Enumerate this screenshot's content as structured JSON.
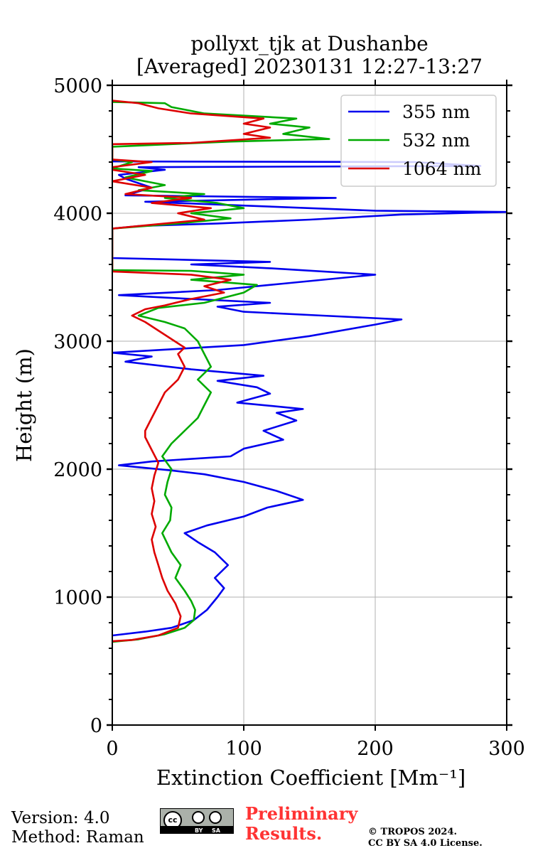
{
  "chart_data": {
    "type": "line",
    "title": [
      "pollyxt_tjk at Dushanbe",
      "[Averaged] 20230131 12:27-13:27"
    ],
    "xlabel": "Extinction Coefficient [Mm⁻¹]",
    "ylabel": "Height (m)",
    "xlim": [
      0,
      300
    ],
    "ylim": [
      0,
      5000
    ],
    "xticks": [
      0,
      100,
      200,
      300
    ],
    "yticks": [
      0,
      1000,
      2000,
      3000,
      4000,
      5000
    ],
    "xtick_labels": [
      "0",
      "100",
      "200",
      "300"
    ],
    "ytick_labels": [
      "0",
      "1000",
      "2000",
      "3000",
      "4000",
      "5000"
    ],
    "grid": true,
    "legend_position": "top-right",
    "series": [
      {
        "name": "355 nm",
        "color": "#0000ee",
        "points": [
          [
            0,
            700
          ],
          [
            25,
            730
          ],
          [
            45,
            760
          ],
          [
            62,
            820
          ],
          [
            72,
            900
          ],
          [
            80,
            1000
          ],
          [
            85,
            1070
          ],
          [
            78,
            1150
          ],
          [
            88,
            1250
          ],
          [
            78,
            1350
          ],
          [
            65,
            1430
          ],
          [
            55,
            1500
          ],
          [
            72,
            1560
          ],
          [
            100,
            1630
          ],
          [
            118,
            1700
          ],
          [
            145,
            1760
          ],
          [
            125,
            1830
          ],
          [
            100,
            1900
          ],
          [
            70,
            1960
          ],
          [
            45,
            1990
          ],
          [
            5,
            2030
          ],
          [
            30,
            2060
          ],
          [
            90,
            2100
          ],
          [
            100,
            2160
          ],
          [
            130,
            2230
          ],
          [
            115,
            2300
          ],
          [
            140,
            2380
          ],
          [
            125,
            2440
          ],
          [
            145,
            2470
          ],
          [
            95,
            2520
          ],
          [
            120,
            2590
          ],
          [
            110,
            2640
          ],
          [
            80,
            2690
          ],
          [
            115,
            2730
          ],
          [
            60,
            2780
          ],
          [
            10,
            2840
          ],
          [
            30,
            2880
          ],
          [
            0,
            2910
          ],
          [
            50,
            2940
          ],
          [
            100,
            2970
          ],
          [
            150,
            3040
          ],
          [
            200,
            3130
          ],
          [
            220,
            3170
          ],
          [
            160,
            3200
          ],
          [
            100,
            3230
          ],
          [
            80,
            3270
          ],
          [
            120,
            3300
          ],
          [
            60,
            3330
          ],
          [
            5,
            3360
          ],
          [
            80,
            3400
          ],
          [
            130,
            3450
          ],
          [
            200,
            3520
          ],
          [
            120,
            3570
          ],
          [
            60,
            3600
          ],
          [
            120,
            3620
          ],
          [
            0,
            3650
          ],
          [
            0,
            3660
          ],
          [
            0,
            3880
          ],
          [
            20,
            3900
          ],
          [
            80,
            3920
          ],
          [
            150,
            3950
          ],
          [
            220,
            3990
          ],
          [
            300,
            4010
          ],
          [
            200,
            4020
          ],
          [
            100,
            4060
          ],
          [
            25,
            4090
          ],
          [
            170,
            4120
          ],
          [
            10,
            4140
          ],
          [
            30,
            4200
          ],
          [
            10,
            4270
          ],
          [
            5,
            4300
          ],
          [
            40,
            4340
          ],
          [
            20,
            4360
          ],
          [
            280,
            4370
          ],
          [
            230,
            4400
          ],
          [
            0,
            4405
          ],
          [
            0,
            4420
          ]
        ]
      },
      {
        "name": "532 nm",
        "color": "#00aa00",
        "points": [
          [
            0,
            650
          ],
          [
            20,
            670
          ],
          [
            40,
            710
          ],
          [
            55,
            760
          ],
          [
            62,
            820
          ],
          [
            63,
            900
          ],
          [
            60,
            970
          ],
          [
            55,
            1050
          ],
          [
            48,
            1150
          ],
          [
            52,
            1250
          ],
          [
            45,
            1350
          ],
          [
            38,
            1500
          ],
          [
            44,
            1600
          ],
          [
            45,
            1700
          ],
          [
            40,
            1800
          ],
          [
            42,
            1900
          ],
          [
            45,
            2000
          ],
          [
            38,
            2100
          ],
          [
            45,
            2200
          ],
          [
            55,
            2300
          ],
          [
            65,
            2400
          ],
          [
            70,
            2500
          ],
          [
            75,
            2600
          ],
          [
            65,
            2700
          ],
          [
            75,
            2800
          ],
          [
            70,
            2900
          ],
          [
            65,
            3000
          ],
          [
            55,
            3100
          ],
          [
            40,
            3150
          ],
          [
            20,
            3200
          ],
          [
            35,
            3260
          ],
          [
            70,
            3300
          ],
          [
            100,
            3380
          ],
          [
            110,
            3440
          ],
          [
            60,
            3480
          ],
          [
            100,
            3520
          ],
          [
            60,
            3550
          ],
          [
            0,
            3555
          ],
          [
            0,
            3880
          ],
          [
            50,
            3920
          ],
          [
            90,
            3960
          ],
          [
            60,
            4000
          ],
          [
            100,
            4040
          ],
          [
            80,
            4080
          ],
          [
            40,
            4120
          ],
          [
            70,
            4150
          ],
          [
            20,
            4180
          ],
          [
            40,
            4220
          ],
          [
            10,
            4280
          ],
          [
            30,
            4330
          ],
          [
            0,
            4350
          ],
          [
            15,
            4400
          ],
          [
            0,
            4420
          ],
          [
            0,
            4520
          ],
          [
            90,
            4560
          ],
          [
            165,
            4580
          ],
          [
            130,
            4620
          ],
          [
            150,
            4670
          ],
          [
            120,
            4700
          ],
          [
            140,
            4740
          ],
          [
            70,
            4780
          ],
          [
            45,
            4830
          ],
          [
            40,
            4860
          ],
          [
            0,
            4870
          ]
        ]
      },
      {
        "name": "1064 nm",
        "color": "#dd0000",
        "points": [
          [
            0,
            655
          ],
          [
            15,
            665
          ],
          [
            35,
            700
          ],
          [
            50,
            760
          ],
          [
            52,
            850
          ],
          [
            48,
            950
          ],
          [
            42,
            1050
          ],
          [
            38,
            1150
          ],
          [
            35,
            1250
          ],
          [
            32,
            1350
          ],
          [
            30,
            1450
          ],
          [
            33,
            1550
          ],
          [
            30,
            1650
          ],
          [
            32,
            1750
          ],
          [
            30,
            1850
          ],
          [
            32,
            1950
          ],
          [
            35,
            2050
          ],
          [
            30,
            2150
          ],
          [
            25,
            2250
          ],
          [
            25,
            2300
          ],
          [
            30,
            2400
          ],
          [
            35,
            2500
          ],
          [
            40,
            2600
          ],
          [
            50,
            2700
          ],
          [
            55,
            2800
          ],
          [
            50,
            2900
          ],
          [
            55,
            2950
          ],
          [
            40,
            3050
          ],
          [
            25,
            3150
          ],
          [
            15,
            3200
          ],
          [
            25,
            3250
          ],
          [
            40,
            3280
          ],
          [
            60,
            3330
          ],
          [
            85,
            3380
          ],
          [
            70,
            3430
          ],
          [
            90,
            3480
          ],
          [
            60,
            3520
          ],
          [
            0,
            3545
          ],
          [
            0,
            3880
          ],
          [
            30,
            3910
          ],
          [
            70,
            3950
          ],
          [
            50,
            4000
          ],
          [
            75,
            4040
          ],
          [
            30,
            4080
          ],
          [
            60,
            4120
          ],
          [
            10,
            4150
          ],
          [
            30,
            4200
          ],
          [
            0,
            4250
          ],
          [
            25,
            4300
          ],
          [
            0,
            4340
          ],
          [
            0,
            4360
          ],
          [
            30,
            4400
          ],
          [
            0,
            4420
          ],
          [
            0,
            4540
          ],
          [
            60,
            4550
          ],
          [
            120,
            4590
          ],
          [
            100,
            4620
          ],
          [
            120,
            4670
          ],
          [
            100,
            4700
          ],
          [
            115,
            4740
          ],
          [
            60,
            4780
          ],
          [
            35,
            4820
          ],
          [
            20,
            4860
          ],
          [
            0,
            4880
          ]
        ]
      }
    ]
  },
  "footer": {
    "version": "Version: 4.0",
    "method": "Method: Raman",
    "preliminary_line1": "Preliminary",
    "preliminary_line2": "Results.",
    "copyright_line1": "© TROPOS 2024.",
    "copyright_line2": "CC BY SA 4.0 License.",
    "license_badge": {
      "cc": "cc",
      "by": "BY",
      "sa": "SA"
    }
  }
}
